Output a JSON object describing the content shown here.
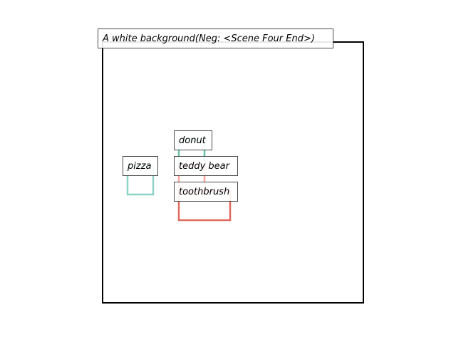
{
  "caption": "A white background(Neg: <Scene Four End>)",
  "objects": [
    {
      "id": "donut",
      "label": "donut",
      "color": "#66c2a5"
    },
    {
      "id": "pizza",
      "label": "pizza",
      "color": "#8dd3c7"
    },
    {
      "id": "teddy-bear",
      "label": "teddy bear",
      "color": "#fb8072"
    },
    {
      "id": "toothbrush",
      "label": "toothbrush",
      "color": "#e06b5e"
    }
  ],
  "colors": {
    "frame": "#000000",
    "label_border": "#4a4a4a",
    "background": "#ffffff"
  }
}
